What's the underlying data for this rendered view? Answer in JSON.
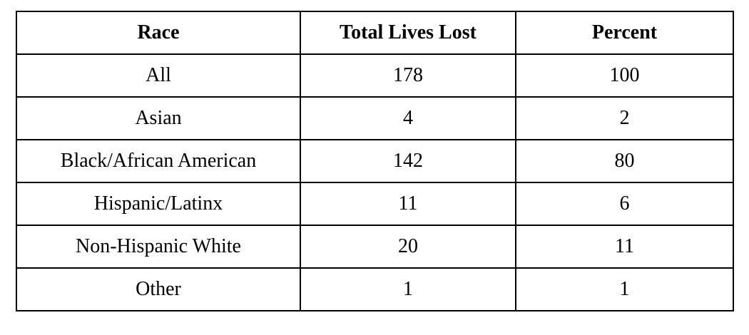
{
  "table": {
    "header": [
      "Race",
      "Total Lives Lost",
      "Percent"
    ],
    "rows": [
      [
        "All",
        178,
        100
      ],
      [
        "Asian",
        4,
        2
      ],
      [
        "Black/African American",
        142,
        80
      ],
      [
        "Hispanic/Latinx",
        11,
        6
      ],
      [
        "Non-Hispanic White",
        20,
        11
      ],
      [
        "Other",
        1,
        1
      ]
    ]
  }
}
